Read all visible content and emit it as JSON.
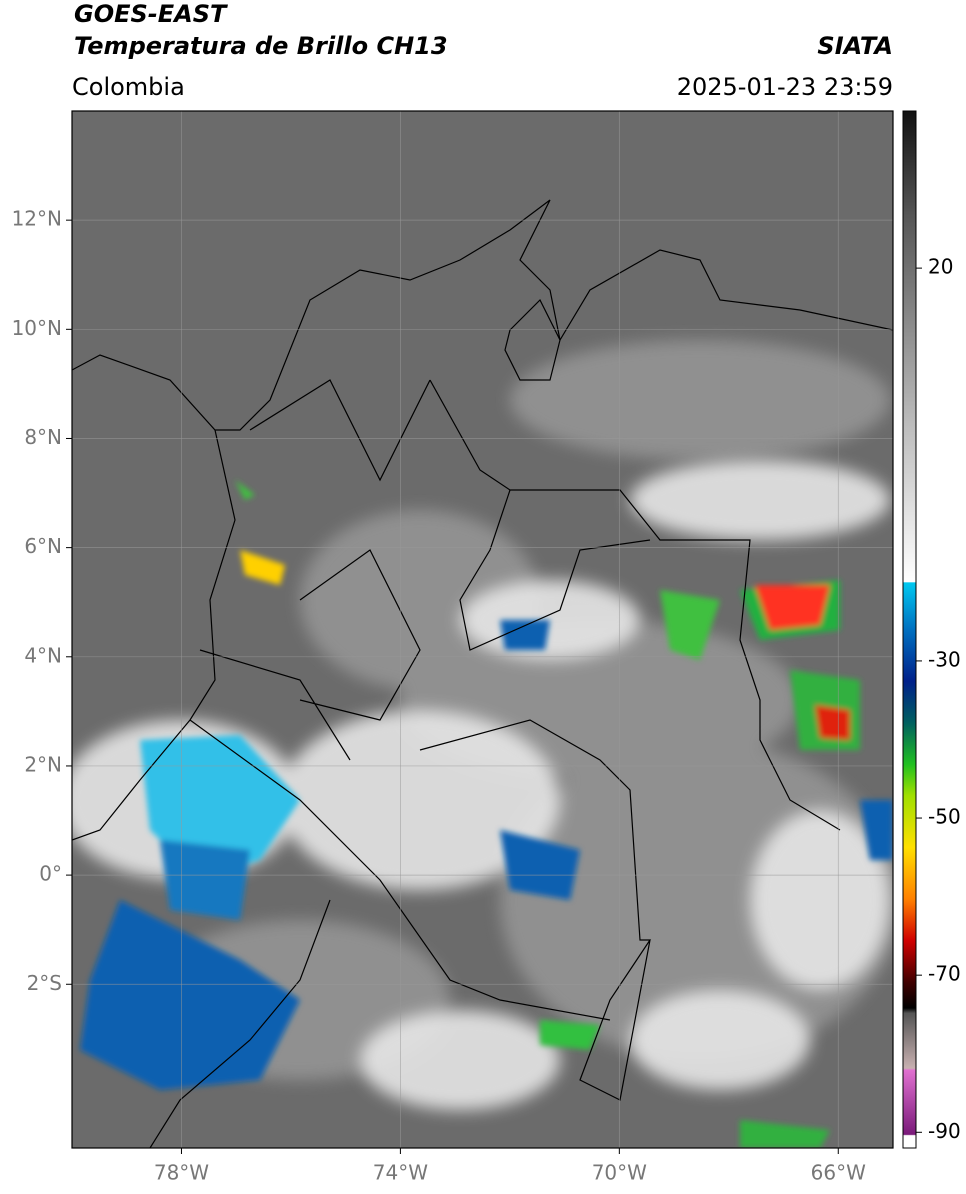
{
  "header": {
    "title": "GOES-EAST",
    "subtitle": "Temperatura de Brillo CH13",
    "source": "SIATA",
    "region": "Colombia",
    "datetime": "2025-01-23 23:59"
  },
  "map": {
    "xlim": [
      -80,
      -65
    ],
    "ylim": [
      -5,
      14
    ],
    "xticks": [
      {
        "value": -78,
        "label": "78°W"
      },
      {
        "value": -74,
        "label": "74°W"
      },
      {
        "value": -70,
        "label": "70°W"
      },
      {
        "value": -66,
        "label": "66°W"
      }
    ],
    "yticks": [
      {
        "value": 12,
        "label": "12°N"
      },
      {
        "value": 10,
        "label": "10°N"
      },
      {
        "value": 8,
        "label": "8°N"
      },
      {
        "value": 6,
        "label": "6°N"
      },
      {
        "value": 4,
        "label": "4°N"
      },
      {
        "value": 2,
        "label": "2°N"
      },
      {
        "value": 0,
        "label": "0°"
      },
      {
        "value": -2,
        "label": "2°S"
      }
    ]
  },
  "colorbar": {
    "clim": [
      -92,
      40
    ],
    "ticks": [
      20,
      -30,
      -50,
      -70,
      -90
    ]
  }
}
